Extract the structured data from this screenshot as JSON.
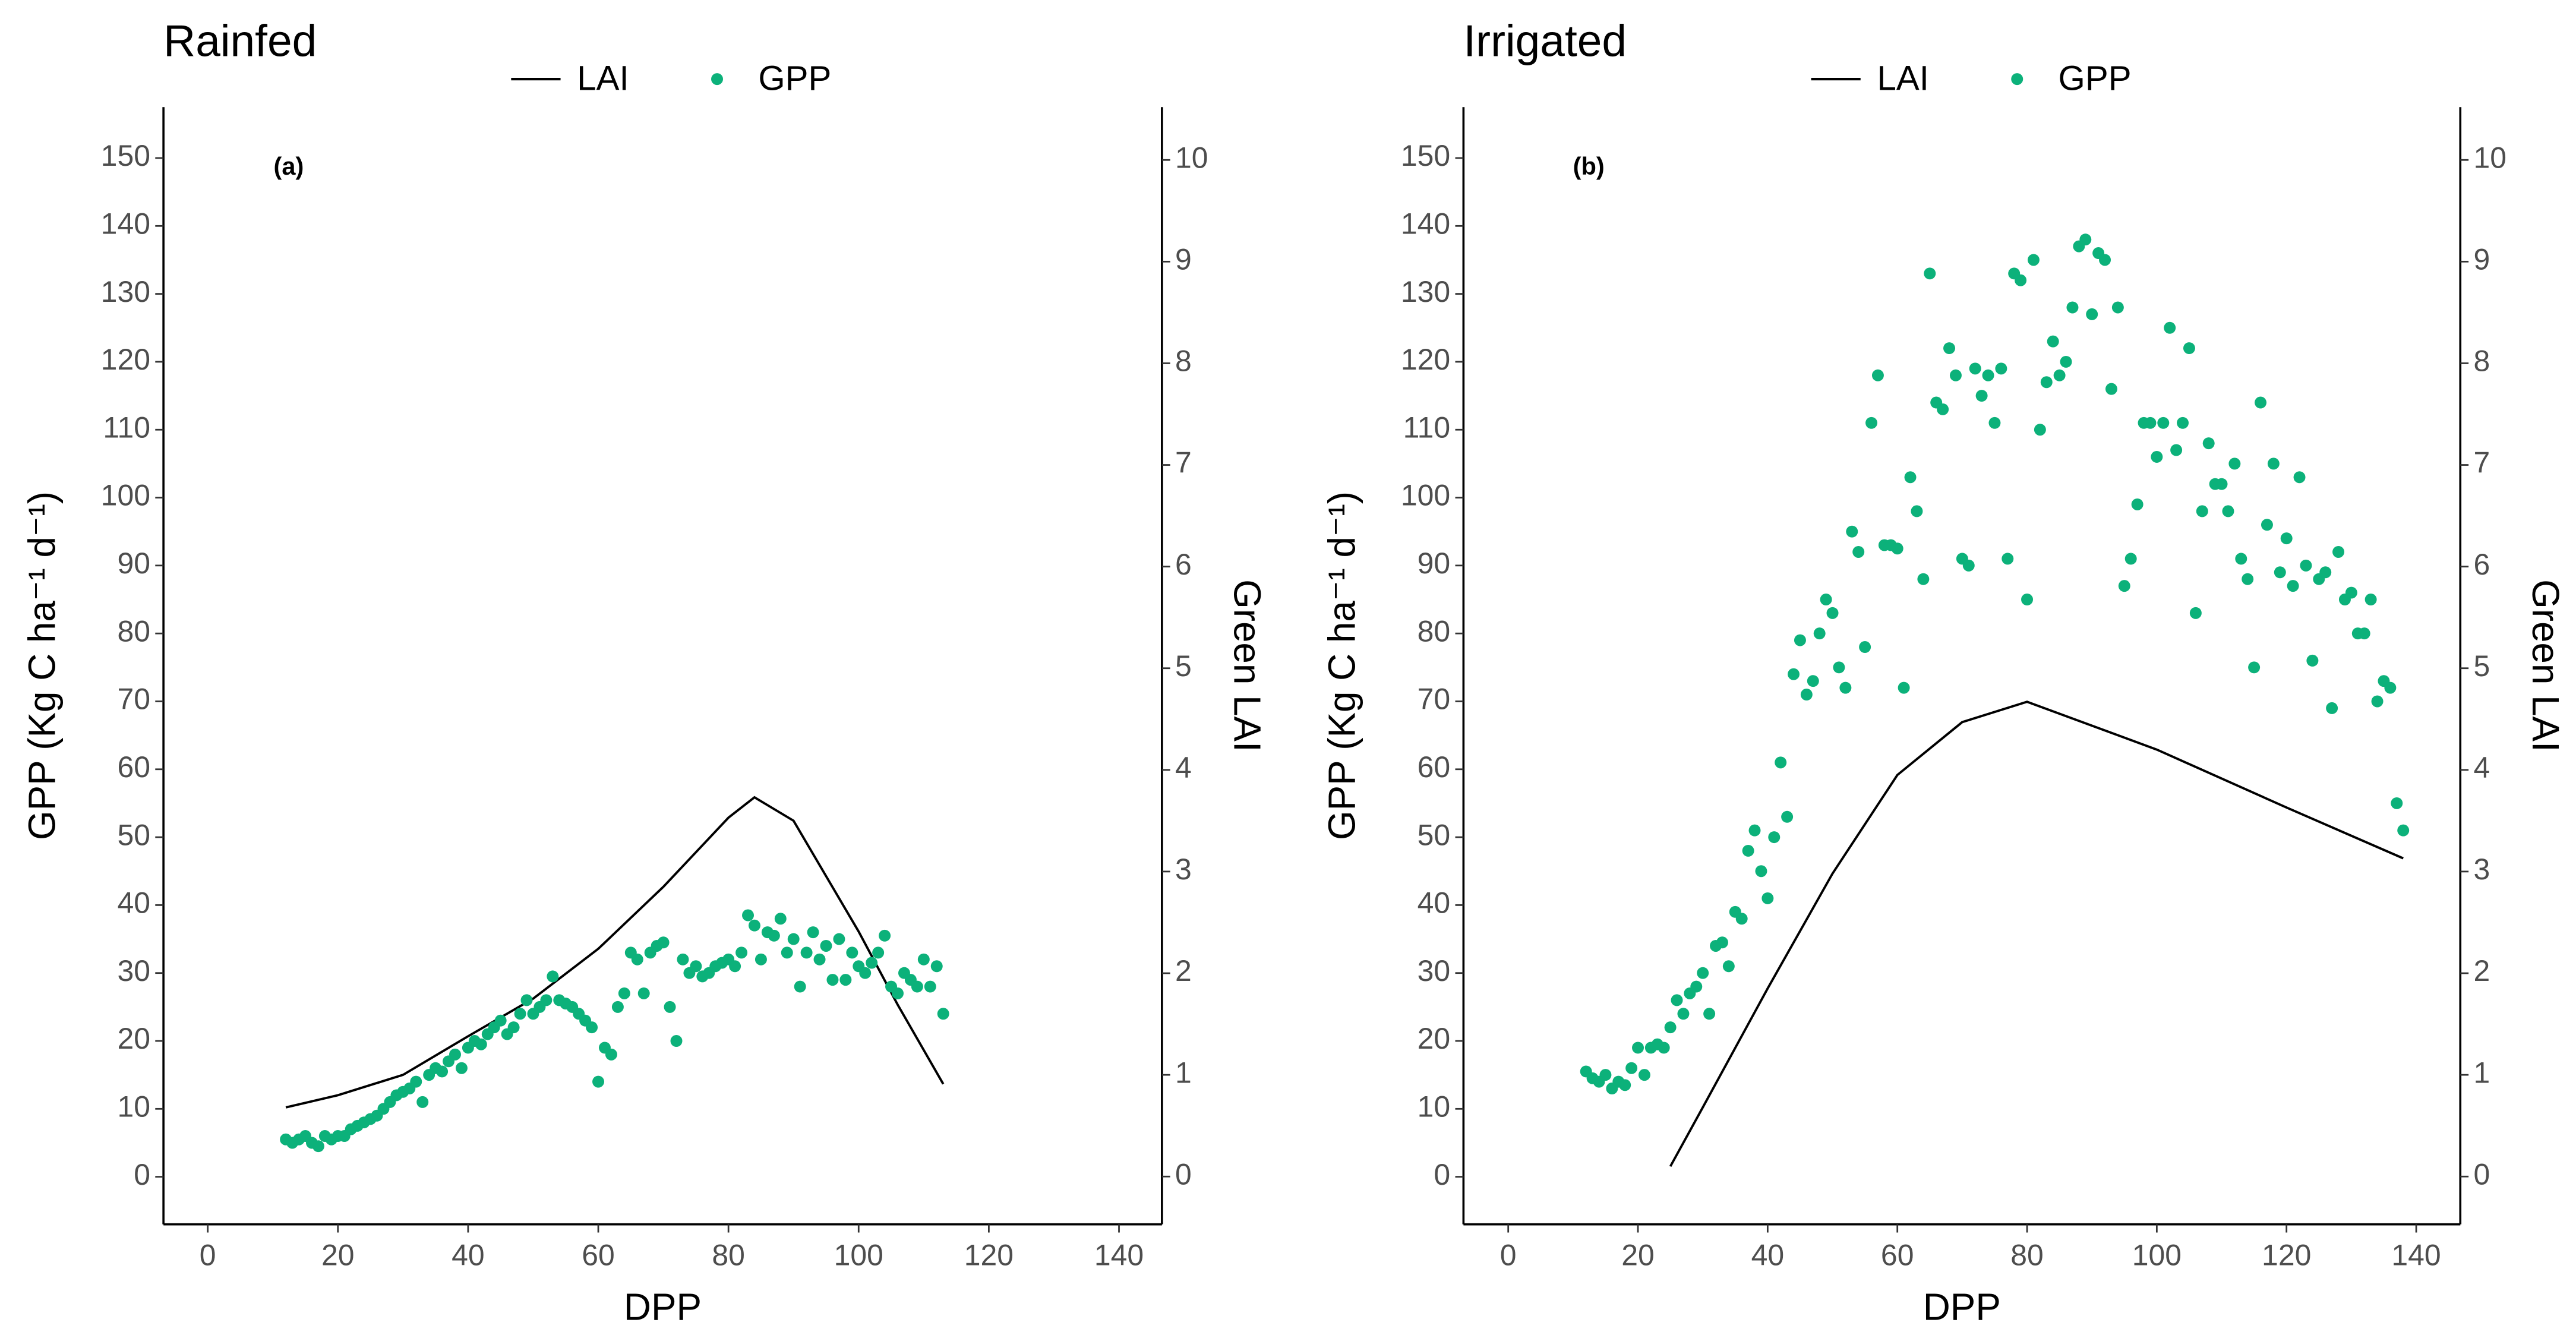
{
  "chart_data": [
    {
      "type": "combo",
      "title": "Rainfed",
      "annotation": "(a)",
      "x_label": "DPP",
      "y_label": "GPP (Kg C ha⁻¹ d⁻¹)",
      "y2_label": "Green LAI",
      "xlim": [
        -6.8,
        146.6
      ],
      "xticks": [
        0,
        20,
        40,
        60,
        80,
        100,
        120,
        140
      ],
      "ylim": [
        -7,
        157.5
      ],
      "yticks": [
        0,
        10,
        20,
        30,
        40,
        50,
        60,
        70,
        80,
        90,
        100,
        110,
        120,
        130,
        140,
        150
      ],
      "y2lim": [
        -0.47,
        10.52
      ],
      "y2ticks": [
        0,
        1,
        2,
        3,
        4,
        5,
        6,
        7,
        8,
        9,
        10
      ],
      "legend": "top",
      "series": [
        {
          "name": "LAI",
          "type": "line",
          "axis": "y2",
          "color": "#000000",
          "x": [
            12,
            20,
            30,
            40,
            50,
            60,
            70,
            80,
            84,
            90,
            100,
            106,
            113
          ],
          "values": [
            0.68,
            0.8,
            1.0,
            1.38,
            1.75,
            2.24,
            2.85,
            3.53,
            3.73,
            3.5,
            2.41,
            1.69,
            0.91
          ]
        },
        {
          "name": "GPP",
          "type": "scatter",
          "color": "#0cb17a",
          "x": [
            12,
            13,
            14,
            15,
            16,
            17,
            18,
            19,
            20,
            21,
            22,
            23,
            24,
            25,
            26,
            27,
            28,
            29,
            30,
            31,
            32,
            33,
            34,
            35,
            36,
            37,
            38,
            39,
            40,
            41,
            42,
            43,
            44,
            45,
            46,
            47,
            48,
            49,
            50,
            51,
            52,
            53,
            54,
            55,
            56,
            57,
            58,
            59,
            60,
            61,
            62,
            63,
            64,
            65,
            66,
            67,
            68,
            69,
            70,
            71,
            72,
            73,
            74,
            75,
            76,
            77,
            78,
            79,
            80,
            81,
            82,
            83,
            84,
            85,
            86,
            87,
            88,
            89,
            90,
            91,
            92,
            93,
            94,
            95,
            96,
            97,
            98,
            99,
            100,
            101,
            102,
            103,
            104,
            105,
            106,
            107,
            108,
            109,
            110,
            111,
            112,
            113
          ],
          "values": [
            5.5,
            5,
            5.5,
            6,
            5,
            4.5,
            6,
            5.5,
            6,
            6,
            7,
            7.5,
            8,
            8.5,
            9,
            10,
            11,
            12,
            12.5,
            13,
            14,
            11,
            15,
            16,
            15.5,
            17,
            18,
            16,
            19,
            20,
            19.5,
            21,
            22,
            23,
            21,
            22,
            24,
            26,
            24,
            25,
            26,
            29.5,
            26,
            25.5,
            25,
            24,
            23,
            22,
            14,
            19,
            18,
            25,
            27,
            33,
            32,
            27,
            33,
            34,
            34.5,
            25,
            20,
            32,
            30,
            31,
            29.5,
            30,
            31,
            31.5,
            32,
            31,
            33,
            38.5,
            37,
            32,
            36,
            35.5,
            38,
            33,
            35,
            28,
            33,
            36,
            32,
            34,
            29,
            35,
            29,
            33,
            31,
            30,
            31.5,
            33,
            35.5,
            28,
            27,
            30,
            29,
            28,
            32,
            28,
            31,
            24
          ]
        }
      ]
    },
    {
      "type": "combo",
      "title": "Irrigated",
      "annotation": "(b)",
      "x_label": "DPP",
      "y_label": "GPP (Kg C ha⁻¹ d⁻¹)",
      "y2_label": "Green LAI",
      "xlim": [
        -6.9,
        146.8
      ],
      "xticks": [
        0,
        20,
        40,
        60,
        80,
        100,
        120,
        140
      ],
      "ylim": [
        -7,
        157.5
      ],
      "yticks": [
        0,
        10,
        20,
        30,
        40,
        50,
        60,
        70,
        80,
        90,
        100,
        110,
        120,
        130,
        140,
        150
      ],
      "y2lim": [
        -0.47,
        10.52
      ],
      "y2ticks": [
        0,
        1,
        2,
        3,
        4,
        5,
        6,
        7,
        8,
        9,
        10
      ],
      "legend": "top",
      "series": [
        {
          "name": "LAI",
          "type": "line",
          "axis": "y2",
          "color": "#000000",
          "x": [
            25,
            30,
            40,
            50,
            60,
            70,
            80,
            100,
            120,
            138
          ],
          "values": [
            0.1,
            0.68,
            1.85,
            2.98,
            3.95,
            4.47,
            4.67,
            4.2,
            3.63,
            3.13
          ]
        },
        {
          "name": "GPP",
          "type": "scatter",
          "color": "#0cb17a",
          "x": [
            12,
            13,
            14,
            15,
            16,
            17,
            18,
            19,
            20,
            21,
            22,
            23,
            24,
            25,
            26,
            27,
            28,
            29,
            30,
            31,
            32,
            33,
            34,
            35,
            36,
            37,
            38,
            39,
            40,
            41,
            42,
            43,
            44,
            45,
            46,
            47,
            48,
            49,
            50,
            51,
            52,
            53,
            54,
            55,
            56,
            57,
            58,
            59,
            60,
            61,
            62,
            63,
            64,
            65,
            66,
            67,
            68,
            69,
            70,
            71,
            72,
            73,
            74,
            75,
            76,
            77,
            78,
            79,
            80,
            81,
            82,
            83,
            84,
            85,
            86,
            87,
            88,
            89,
            90,
            91,
            92,
            93,
            94,
            95,
            96,
            97,
            98,
            99,
            100,
            101,
            102,
            103,
            104,
            105,
            106,
            107,
            108,
            109,
            110,
            111,
            112,
            113,
            114,
            115,
            116,
            117,
            118,
            119,
            120,
            121,
            122,
            123,
            124,
            125,
            126,
            127,
            128,
            129,
            130,
            131,
            132,
            133,
            134,
            135,
            136,
            137,
            138
          ],
          "values": [
            15.5,
            14.5,
            14,
            15,
            13,
            14,
            13.5,
            16,
            19,
            15,
            19,
            19.5,
            19,
            22,
            26,
            24,
            27,
            28,
            30,
            24,
            34,
            34.5,
            31,
            39,
            38,
            48,
            51,
            45,
            41,
            50,
            61,
            53,
            74,
            79,
            71,
            73,
            80,
            85,
            83,
            75,
            72,
            95,
            92,
            78,
            111,
            118,
            93,
            93,
            92.5,
            72,
            103,
            98,
            88,
            133,
            114,
            113,
            122,
            118,
            91,
            90,
            119,
            115,
            118,
            111,
            119,
            91,
            133,
            132,
            85,
            135,
            110,
            117,
            123,
            118,
            120,
            128,
            137,
            138,
            127,
            136,
            135,
            116,
            128,
            87,
            91,
            99,
            111,
            111,
            106,
            111,
            125,
            107,
            111,
            122,
            83,
            98,
            108,
            102,
            102,
            98,
            105,
            91,
            88,
            75,
            114,
            96,
            105,
            89,
            94,
            87,
            103,
            90,
            76,
            88,
            89,
            69,
            92,
            85,
            86,
            80,
            80,
            85,
            70,
            73,
            72,
            55,
            51
          ]
        }
      ]
    }
  ]
}
